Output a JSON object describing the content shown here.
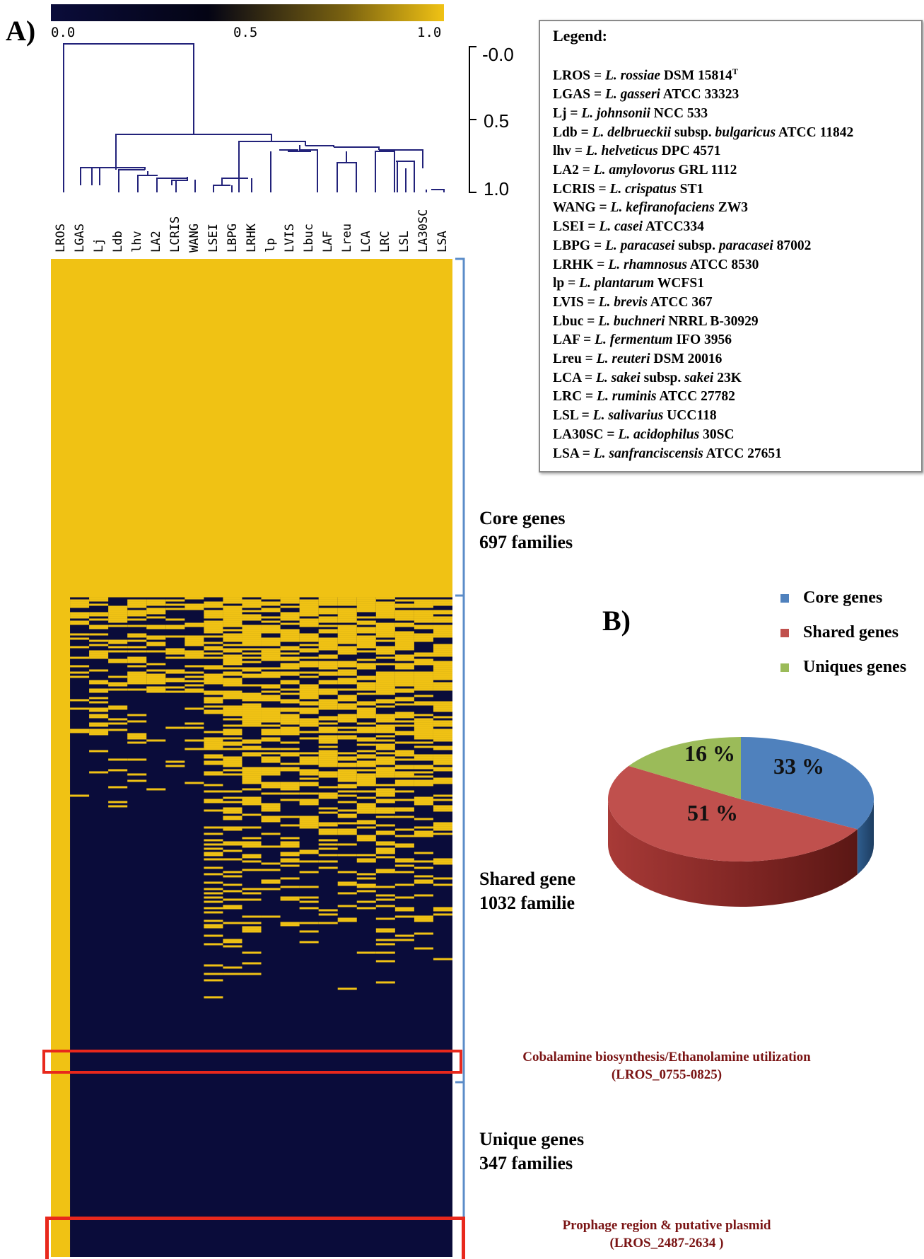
{
  "panel_a_label": "A)",
  "panel_b_label": "B)",
  "colorbar": {
    "ticks": [
      "0.0",
      "0.5",
      "1.0"
    ],
    "low_color": "#0a0c3a",
    "high_color": "#f0c214"
  },
  "dendrogram_scale": {
    "ticks": [
      "-0.0",
      "0.5",
      "1.0"
    ]
  },
  "columns": [
    "LROS",
    "LGAS",
    "Lj",
    "Ldb",
    "lhv",
    "LA2",
    "LCRIS",
    "WANG",
    "LSEI",
    "LBPG",
    "LRHK",
    "lp",
    "LVIS",
    "Lbuc",
    "LAF",
    "Lreu",
    "LCA",
    "LRC",
    "LSL",
    "LA30SC",
    "LSA"
  ],
  "legend": {
    "title": "Legend:",
    "entries": [
      {
        "code": "LROS",
        "species": "L. rossiae",
        "strain": "DSM 15814",
        "sup": "T"
      },
      {
        "code": "LGAS",
        "species": "L. gasseri",
        "strain": "ATCC 33323"
      },
      {
        "code": "Lj",
        "species": "L. johnsonii",
        "strain": "NCC 533"
      },
      {
        "code": "Ldb",
        "species": "L. delbrueckii",
        "mid": "subsp.",
        "species2": "bulgaricus",
        "strain": "ATCC 11842"
      },
      {
        "code": "lhv",
        "species": "L. helveticus",
        "strain": "DPC 4571"
      },
      {
        "code": "LA2",
        "species": "L. amylovorus",
        "strain": "GRL 1112"
      },
      {
        "code": "LCRIS",
        "species": "L. crispatus",
        "strain": "ST1"
      },
      {
        "code": "WANG",
        "species": "L. kefiranofaciens",
        "strain": "ZW3"
      },
      {
        "code": "LSEI",
        "species": "L. casei",
        "strain": "ATCC334"
      },
      {
        "code": "LBPG",
        "species": "L. paracasei",
        "mid": "subsp.",
        "species2": "paracasei",
        "strain": "87002"
      },
      {
        "code": "LRHK",
        "species": "L. rhamnosus",
        "strain": "ATCC 8530"
      },
      {
        "code": "lp",
        "species": "L. plantarum",
        "strain": "WCFS1"
      },
      {
        "code": "LVIS",
        "species": "L. brevis",
        "strain": "ATCC 367"
      },
      {
        "code": "Lbuc",
        "species": "L. buchneri",
        "strain": "NRRL B-30929"
      },
      {
        "code": "LAF",
        "species": "L. fermentum",
        "strain": "IFO 3956"
      },
      {
        "code": "Lreu",
        "species": "L. reuteri",
        "strain": "DSM 20016"
      },
      {
        "code": "LCA",
        "species": "L. sakei",
        "mid": "subsp.",
        "species2": "sakei",
        "strain": "23K"
      },
      {
        "code": "LRC",
        "species": "L. ruminis",
        "strain": "ATCC 27782"
      },
      {
        "code": "LSL",
        "species": "L. salivarius",
        "strain": "UCC118"
      },
      {
        "code": "LA30SC",
        "species": "L. acidophilus",
        "strain": "30SC"
      },
      {
        "code": "LSA",
        "species": "L. sanfranciscensis",
        "strain": "ATCC 27651"
      }
    ]
  },
  "sections": {
    "core": {
      "line1": "Core genes",
      "line2": "697 families"
    },
    "shared": {
      "line1": "Shared gene",
      "line2": "1032 familie"
    },
    "unique": {
      "line1": "Unique genes",
      "line2": "347 families"
    }
  },
  "annotations": {
    "cobalamine": {
      "line1": "Cobalamine biosynthesis/Ethanolamine utilization",
      "line2": "(LROS_0755-0825)"
    },
    "prophage": {
      "line1": "Prophage region & putative plasmid",
      "line2": "(LROS_2487-2634 )"
    }
  },
  "chart_data": [
    {
      "type": "heatmap",
      "columns": [
        "LROS",
        "LGAS",
        "Lj",
        "Ldb",
        "lhv",
        "LA2",
        "LCRIS",
        "WANG",
        "LSEI",
        "LBPG",
        "LRHK",
        "lp",
        "LVIS",
        "Lbuc",
        "LAF",
        "Lreu",
        "LCA",
        "LRC",
        "LSL",
        "LA30SC",
        "LSA"
      ],
      "color_scale": [
        0.0,
        1.0
      ],
      "row_groups": [
        {
          "name": "Core genes",
          "families": 697
        },
        {
          "name": "Shared genes",
          "families": 1032
        },
        {
          "name": "Unique genes",
          "families": 347
        }
      ]
    },
    {
      "type": "pie",
      "labels": [
        "Core genes",
        "Shared genes",
        "Uniques genes"
      ],
      "values": [
        33,
        51,
        16
      ],
      "value_labels": [
        "33 %",
        "51 %",
        "16 %"
      ],
      "colors": [
        "#4f81bd",
        "#c0504d",
        "#9bbb59"
      ],
      "legend_position": "top-right"
    }
  ]
}
